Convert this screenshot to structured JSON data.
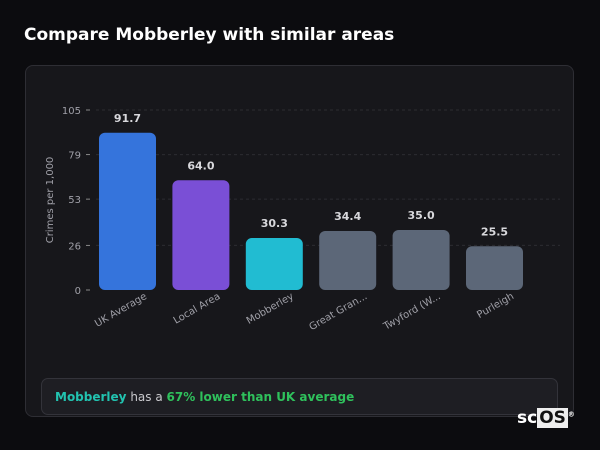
{
  "title": "Compare Mobberley with similar areas",
  "chart_data": {
    "type": "bar",
    "title": "",
    "xlabel": "",
    "ylabel": "Crimes per 1,000",
    "ylim": [
      0,
      105
    ],
    "yticks": [
      0,
      26,
      53,
      79,
      105
    ],
    "grid": true,
    "categories": [
      "UK Average",
      "Local Area",
      "Mobberley",
      "Great Gran...",
      "Twyford (W...",
      "Purleigh"
    ],
    "values": [
      91.7,
      64.0,
      30.3,
      34.4,
      35.0,
      25.5
    ],
    "value_labels": [
      "91.7",
      "64.0",
      "30.3",
      "34.4",
      "35.0",
      "25.5"
    ],
    "colors": [
      "#3574dc",
      "#7a4fd6",
      "#21bcd2",
      "#5c6778",
      "#5c6778",
      "#5c6778"
    ]
  },
  "note": {
    "area": "Mobberley",
    "middle": " has a ",
    "comparison": "67% lower than UK average"
  },
  "logo": {
    "text1": "sc",
    "text2": "OS",
    "mark": "®"
  }
}
